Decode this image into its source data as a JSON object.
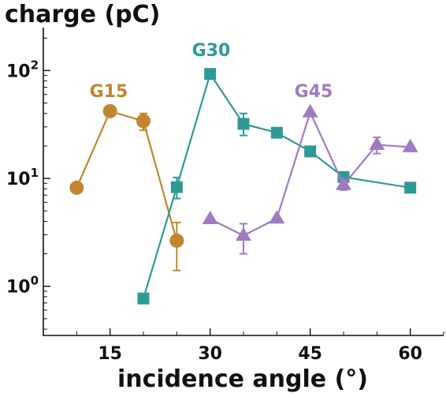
{
  "chart_data": {
    "type": "line",
    "xlabel": "incidence angle (°)",
    "ylabel": "charge (pC)",
    "xlim": [
      5,
      65
    ],
    "ylim": [
      0.35,
      250
    ],
    "yscale": "log",
    "x_ticks": [
      15,
      30,
      45,
      60
    ],
    "y_ticks": [
      {
        "value": 1,
        "base": "10",
        "exp": "0"
      },
      {
        "value": 10,
        "base": "10",
        "exp": "1"
      },
      {
        "value": 100,
        "base": "10",
        "exp": "2"
      }
    ],
    "grid": false,
    "legend": "none",
    "series": [
      {
        "name": "G15",
        "color": "#C0852E",
        "marker": "circle",
        "points": [
          {
            "x": 10,
            "y": 8.2
          },
          {
            "x": 15,
            "y": 42,
            "err_low": 39,
            "err_high": 44
          },
          {
            "x": 20,
            "y": 34,
            "err_low": 28,
            "err_high": 40
          },
          {
            "x": 25,
            "y": 2.65,
            "err_low": 1.4,
            "err_high": 3.9
          }
        ]
      },
      {
        "name": "G30",
        "color": "#2E9A96",
        "marker": "square",
        "points": [
          {
            "x": 20,
            "y": 0.77
          },
          {
            "x": 25,
            "y": 8.3,
            "err_low": 6.5,
            "err_high": 10.2
          },
          {
            "x": 30,
            "y": 93
          },
          {
            "x": 35,
            "y": 32,
            "err_low": 25,
            "err_high": 40
          },
          {
            "x": 40,
            "y": 26.5
          },
          {
            "x": 45,
            "y": 17.8
          },
          {
            "x": 50,
            "y": 10.3
          },
          {
            "x": 60,
            "y": 8.2,
            "err_low": 7.5,
            "err_high": 8.9
          }
        ]
      },
      {
        "name": "G45",
        "color": "#A07AC0",
        "marker": "triangle",
        "points": [
          {
            "x": 30,
            "y": 4.2
          },
          {
            "x": 35,
            "y": 2.95,
            "err_low": 2.0,
            "err_high": 3.8
          },
          {
            "x": 40,
            "y": 4.25
          },
          {
            "x": 45,
            "y": 41
          },
          {
            "x": 50,
            "y": 8.7,
            "err_low": 7.8,
            "err_high": 9.6
          },
          {
            "x": 55,
            "y": 20.5,
            "err_low": 17,
            "err_high": 24
          },
          {
            "x": 60,
            "y": 19.5
          }
        ]
      }
    ]
  }
}
